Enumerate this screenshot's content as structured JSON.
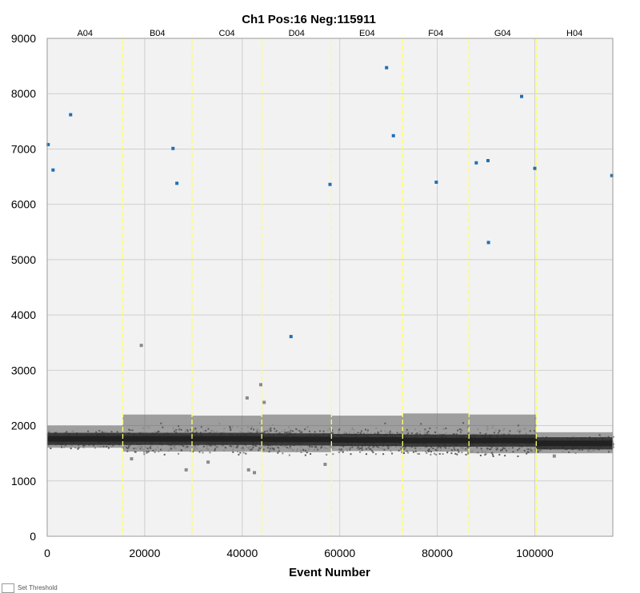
{
  "chart_data": {
    "type": "scatter",
    "title": "Ch1 Pos:16 Neg:115911",
    "xlabel": "Event Number",
    "ylabel": "",
    "xlim": [
      0,
      116000
    ],
    "ylim": [
      0,
      9000
    ],
    "x_ticks": [
      "0",
      "20000",
      "40000",
      "60000",
      "80000",
      "100000"
    ],
    "y_ticks": [
      "0",
      "1000",
      "2000",
      "3000",
      "4000",
      "5000",
      "6000",
      "7000",
      "8000",
      "9000"
    ],
    "grid": true,
    "wells": [
      {
        "name": "A04",
        "start": 0,
        "end": 15500
      },
      {
        "name": "B04",
        "start": 15500,
        "end": 29700
      },
      {
        "name": "C04",
        "start": 29700,
        "end": 44000
      },
      {
        "name": "D04",
        "start": 44000,
        "end": 58300
      },
      {
        "name": "E04",
        "start": 58300,
        "end": 72900
      },
      {
        "name": "F04",
        "start": 72900,
        "end": 86500
      },
      {
        "name": "G04",
        "start": 86500,
        "end": 100300
      },
      {
        "name": "H04",
        "start": 100300,
        "end": 116000
      }
    ],
    "well_boundaries": [
      15500,
      29700,
      44000,
      58300,
      72900,
      86500,
      100300
    ],
    "negative_band": [
      {
        "well": "A04",
        "center": 1760,
        "spread_low": 1600,
        "spread_high": 2000
      },
      {
        "well": "B04",
        "center": 1760,
        "spread_low": 1530,
        "spread_high": 2200
      },
      {
        "well": "C04",
        "center": 1760,
        "spread_low": 1530,
        "spread_high": 2180
      },
      {
        "well": "D04",
        "center": 1750,
        "spread_low": 1520,
        "spread_high": 2200
      },
      {
        "well": "E04",
        "center": 1740,
        "spread_low": 1540,
        "spread_high": 2180
      },
      {
        "well": "F04",
        "center": 1730,
        "spread_low": 1530,
        "spread_high": 2220
      },
      {
        "well": "G04",
        "center": 1730,
        "spread_low": 1500,
        "spread_high": 2200
      },
      {
        "well": "H04",
        "center": 1680,
        "spread_low": 1500,
        "spread_high": 1880
      }
    ],
    "positive_droplets": [
      {
        "x": 200,
        "y": 7080
      },
      {
        "x": 1200,
        "y": 6620
      },
      {
        "x": 4800,
        "y": 7620
      },
      {
        "x": 25800,
        "y": 7010
      },
      {
        "x": 26600,
        "y": 6380
      },
      {
        "x": 58000,
        "y": 6360
      },
      {
        "x": 69600,
        "y": 8470
      },
      {
        "x": 71000,
        "y": 7240
      },
      {
        "x": 79800,
        "y": 6400
      },
      {
        "x": 88000,
        "y": 6750
      },
      {
        "x": 90400,
        "y": 6790
      },
      {
        "x": 90500,
        "y": 5310
      },
      {
        "x": 97300,
        "y": 7950
      },
      {
        "x": 100000,
        "y": 6650
      },
      {
        "x": 115800,
        "y": 6520
      },
      {
        "x": 50000,
        "y": 3610
      }
    ],
    "negative_outliers": [
      {
        "x": 19300,
        "y": 3450
      },
      {
        "x": 41000,
        "y": 2500
      },
      {
        "x": 44500,
        "y": 2420
      },
      {
        "x": 43800,
        "y": 2740
      },
      {
        "x": 17300,
        "y": 1400
      },
      {
        "x": 28500,
        "y": 1200
      },
      {
        "x": 41300,
        "y": 1200
      },
      {
        "x": 42500,
        "y": 1150
      },
      {
        "x": 57000,
        "y": 1300
      },
      {
        "x": 33000,
        "y": 1340
      },
      {
        "x": 104000,
        "y": 1450
      }
    ],
    "colors": {
      "plot_bg": "#f2f2f2",
      "grid": "#cfcfcf",
      "well_line": "#ffff66",
      "positive": "#1f6fb5",
      "negative_dark": "#2e2e2e",
      "negative_mid": "#5a5a5a",
      "negative_light": "#8a8a8a"
    }
  },
  "footer": {
    "threshold_label": "Set Threshold"
  }
}
